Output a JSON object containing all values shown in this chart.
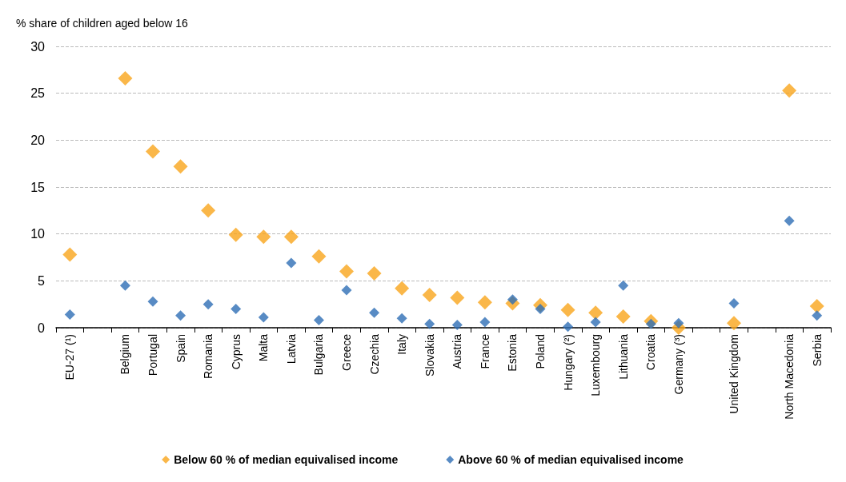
{
  "chart_data": {
    "type": "scatter",
    "ylabel": "% share of children aged below 16",
    "categories": [
      "EU-27 (¹)",
      null,
      "Belgium",
      "Portugal",
      "Spain",
      "Romania",
      "Cyprus",
      "Malta",
      "Latvia",
      "Bulgaria",
      "Greece",
      "Czechia",
      "Italy",
      "Slovakia",
      "Austria",
      "France",
      "Estonia",
      "Poland",
      "Hungary (²)",
      "Luxembourg",
      "Lithuania",
      "Croatia",
      "Germany (³)",
      null,
      "United Kingdom",
      null,
      "North Macedonia",
      "Serbia"
    ],
    "series": [
      {
        "name": "Below 60 % of median equivalised income",
        "color": "#f9a51b",
        "values": [
          7.8,
          null,
          26.6,
          18.8,
          17.2,
          12.5,
          9.9,
          9.7,
          9.7,
          7.6,
          6.0,
          5.8,
          4.2,
          3.5,
          3.2,
          2.7,
          2.6,
          2.4,
          1.9,
          1.6,
          1.2,
          0.7,
          0.0,
          null,
          0.5,
          null,
          25.3,
          2.3
        ]
      },
      {
        "name": "Above 60 % of median equivalised income",
        "color": "#2e6eb5",
        "values": [
          1.4,
          null,
          4.5,
          2.8,
          1.3,
          2.5,
          2.0,
          1.1,
          6.9,
          0.8,
          4.0,
          1.6,
          1.0,
          0.4,
          0.3,
          0.6,
          3.0,
          2.0,
          0.1,
          0.6,
          4.5,
          0.4,
          0.5,
          null,
          2.6,
          null,
          11.4,
          1.3
        ]
      }
    ],
    "ylim": [
      0,
      30
    ],
    "yticks": [
      0,
      5,
      10,
      15,
      20,
      25,
      30
    ],
    "grid": "y",
    "legend": "bottom",
    "marker": "diamond"
  }
}
